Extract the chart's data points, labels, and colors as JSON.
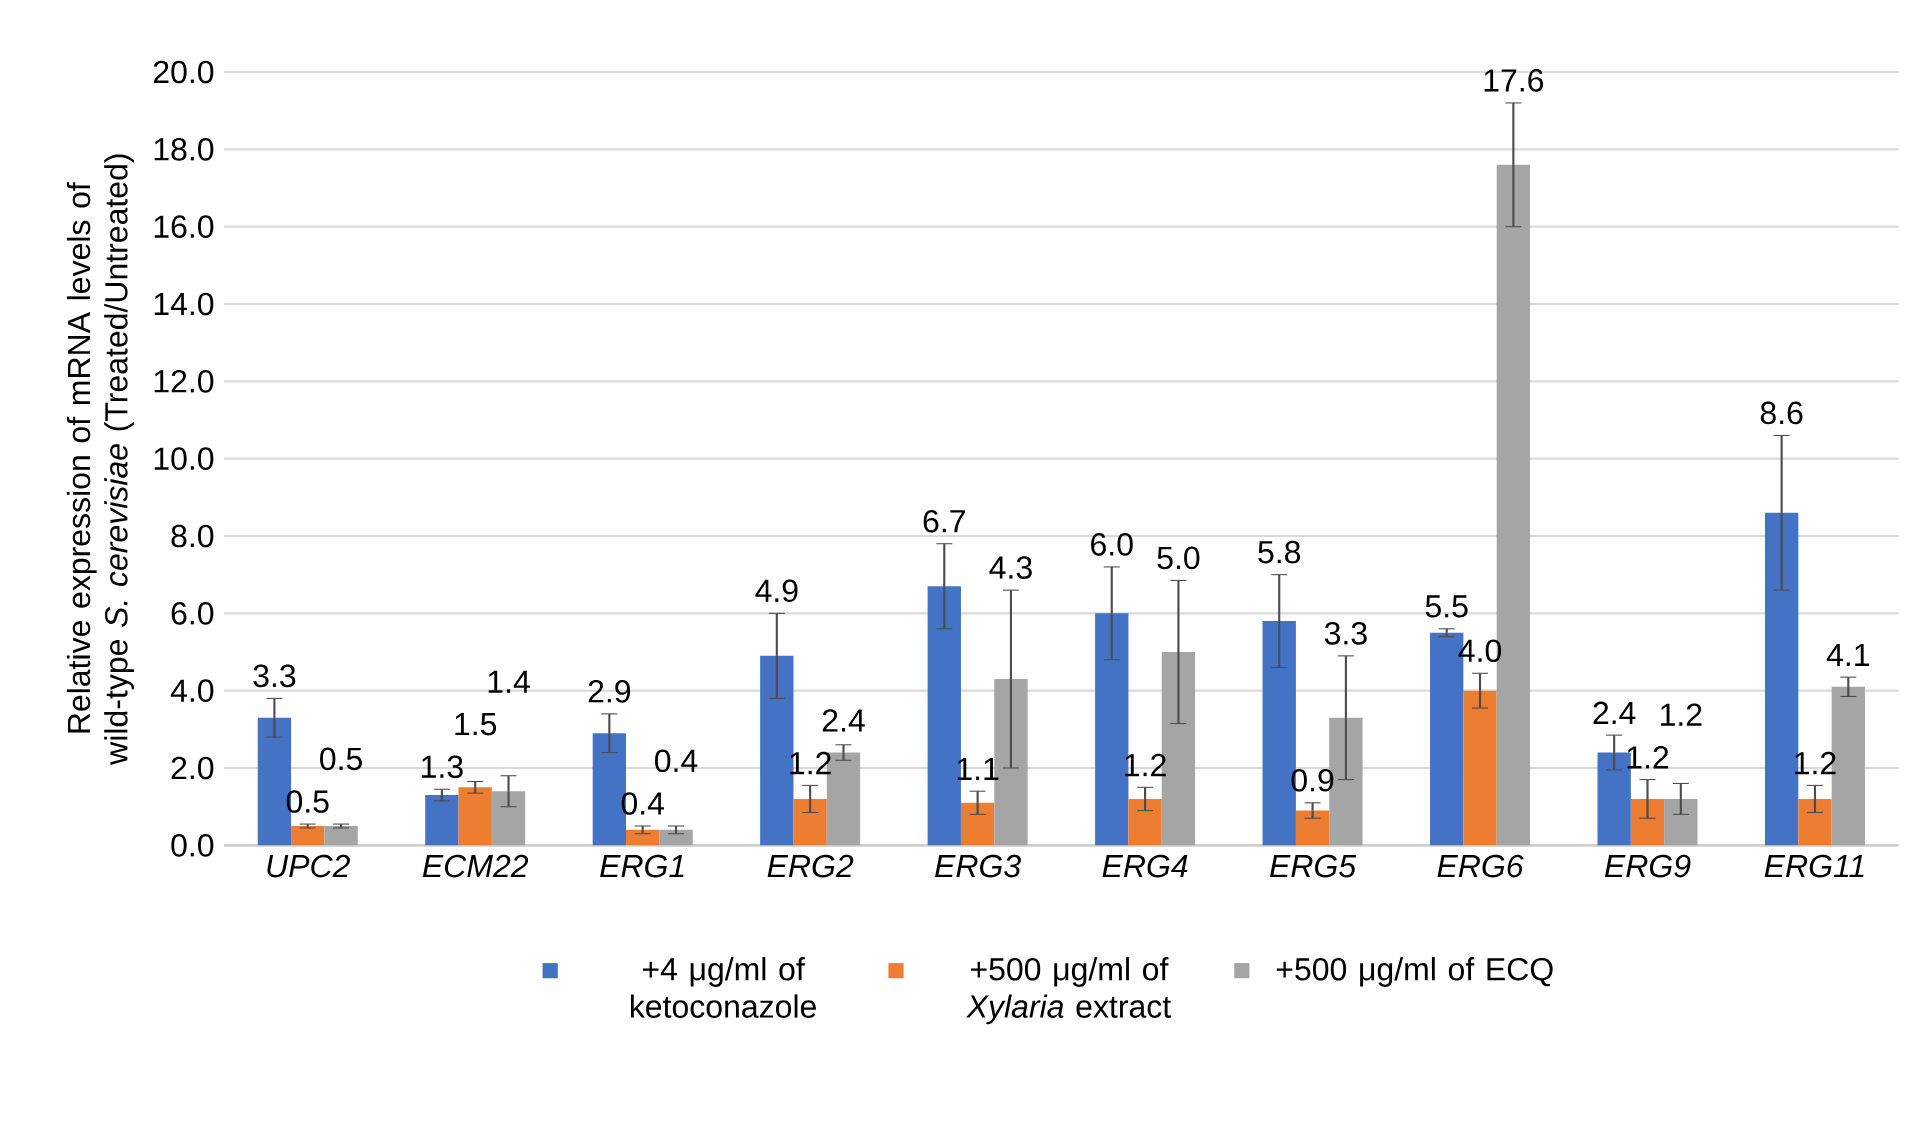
{
  "chart_data": {
    "type": "bar",
    "ylabel": "Relative expression of mRNA levels of wild-type *S. cerevisiae* (Treated/Untreated)",
    "categories": [
      "UPC2",
      "ECM22",
      "ERG1",
      "ERG2",
      "ERG3",
      "ERG4",
      "ERG5",
      "ERG6",
      "ERG9",
      "ERG11"
    ],
    "series": [
      {
        "name": "+4 μg/ml of ketoconazole",
        "color": "#4472c4",
        "values": [
          3.3,
          1.3,
          2.9,
          4.9,
          6.7,
          6.0,
          5.8,
          5.5,
          2.4,
          8.6
        ],
        "errors": [
          0.5,
          0.15,
          0.5,
          1.1,
          1.1,
          1.2,
          1.2,
          0.1,
          0.45,
          2.0
        ],
        "value_labels": [
          "3.3",
          "1.3",
          "2.9",
          "4.9",
          "6.7",
          "6.0",
          "5.8",
          "5.5",
          "2.4",
          "8.6"
        ]
      },
      {
        "name": "+500 μg/ml of *Xylaria* extract",
        "color": "#ed7d31",
        "values": [
          0.5,
          1.5,
          0.4,
          1.2,
          1.1,
          1.2,
          0.9,
          4.0,
          1.2,
          1.2
        ],
        "errors": [
          0.05,
          0.15,
          0.1,
          0.35,
          0.3,
          0.3,
          0.2,
          0.45,
          0.5,
          0.35
        ],
        "value_labels": [
          "0.5",
          "1.5",
          "0.4",
          "1.2",
          "1.1",
          "1.2",
          "0.9",
          "4.0",
          "1.2",
          "1.2"
        ]
      },
      {
        "name": "+500 μg/ml of ECQ",
        "color": "#a5a5a5",
        "values": [
          0.5,
          1.4,
          0.4,
          2.4,
          4.3,
          5.0,
          3.3,
          17.6,
          1.2,
          4.1
        ],
        "errors": [
          0.05,
          0.4,
          0.1,
          0.2,
          2.3,
          1.85,
          1.6,
          1.6,
          0.4,
          0.25
        ],
        "value_labels": [
          "0.5",
          "1.4",
          "0.4",
          "2.4",
          "4.3",
          "5.0",
          "3.3",
          "17.6",
          "1.2",
          "4.1"
        ]
      }
    ],
    "ylim": [
      0,
      20
    ],
    "yticks": [
      {
        "value": 0,
        "label": "0.0"
      },
      {
        "value": 2,
        "label": "2.0"
      },
      {
        "value": 4,
        "label": "4.0"
      },
      {
        "value": 6,
        "label": "6.0"
      },
      {
        "value": 8,
        "label": "8.0"
      },
      {
        "value": 10,
        "label": "10.0"
      },
      {
        "value": 12,
        "label": "12.0"
      },
      {
        "value": 14,
        "label": "14.0"
      },
      {
        "value": 16,
        "label": "16.0"
      },
      {
        "value": 18,
        "label": "18.0"
      },
      {
        "value": 20,
        "label": "20.0"
      }
    ],
    "grid": "y",
    "legend": "bottom"
  }
}
